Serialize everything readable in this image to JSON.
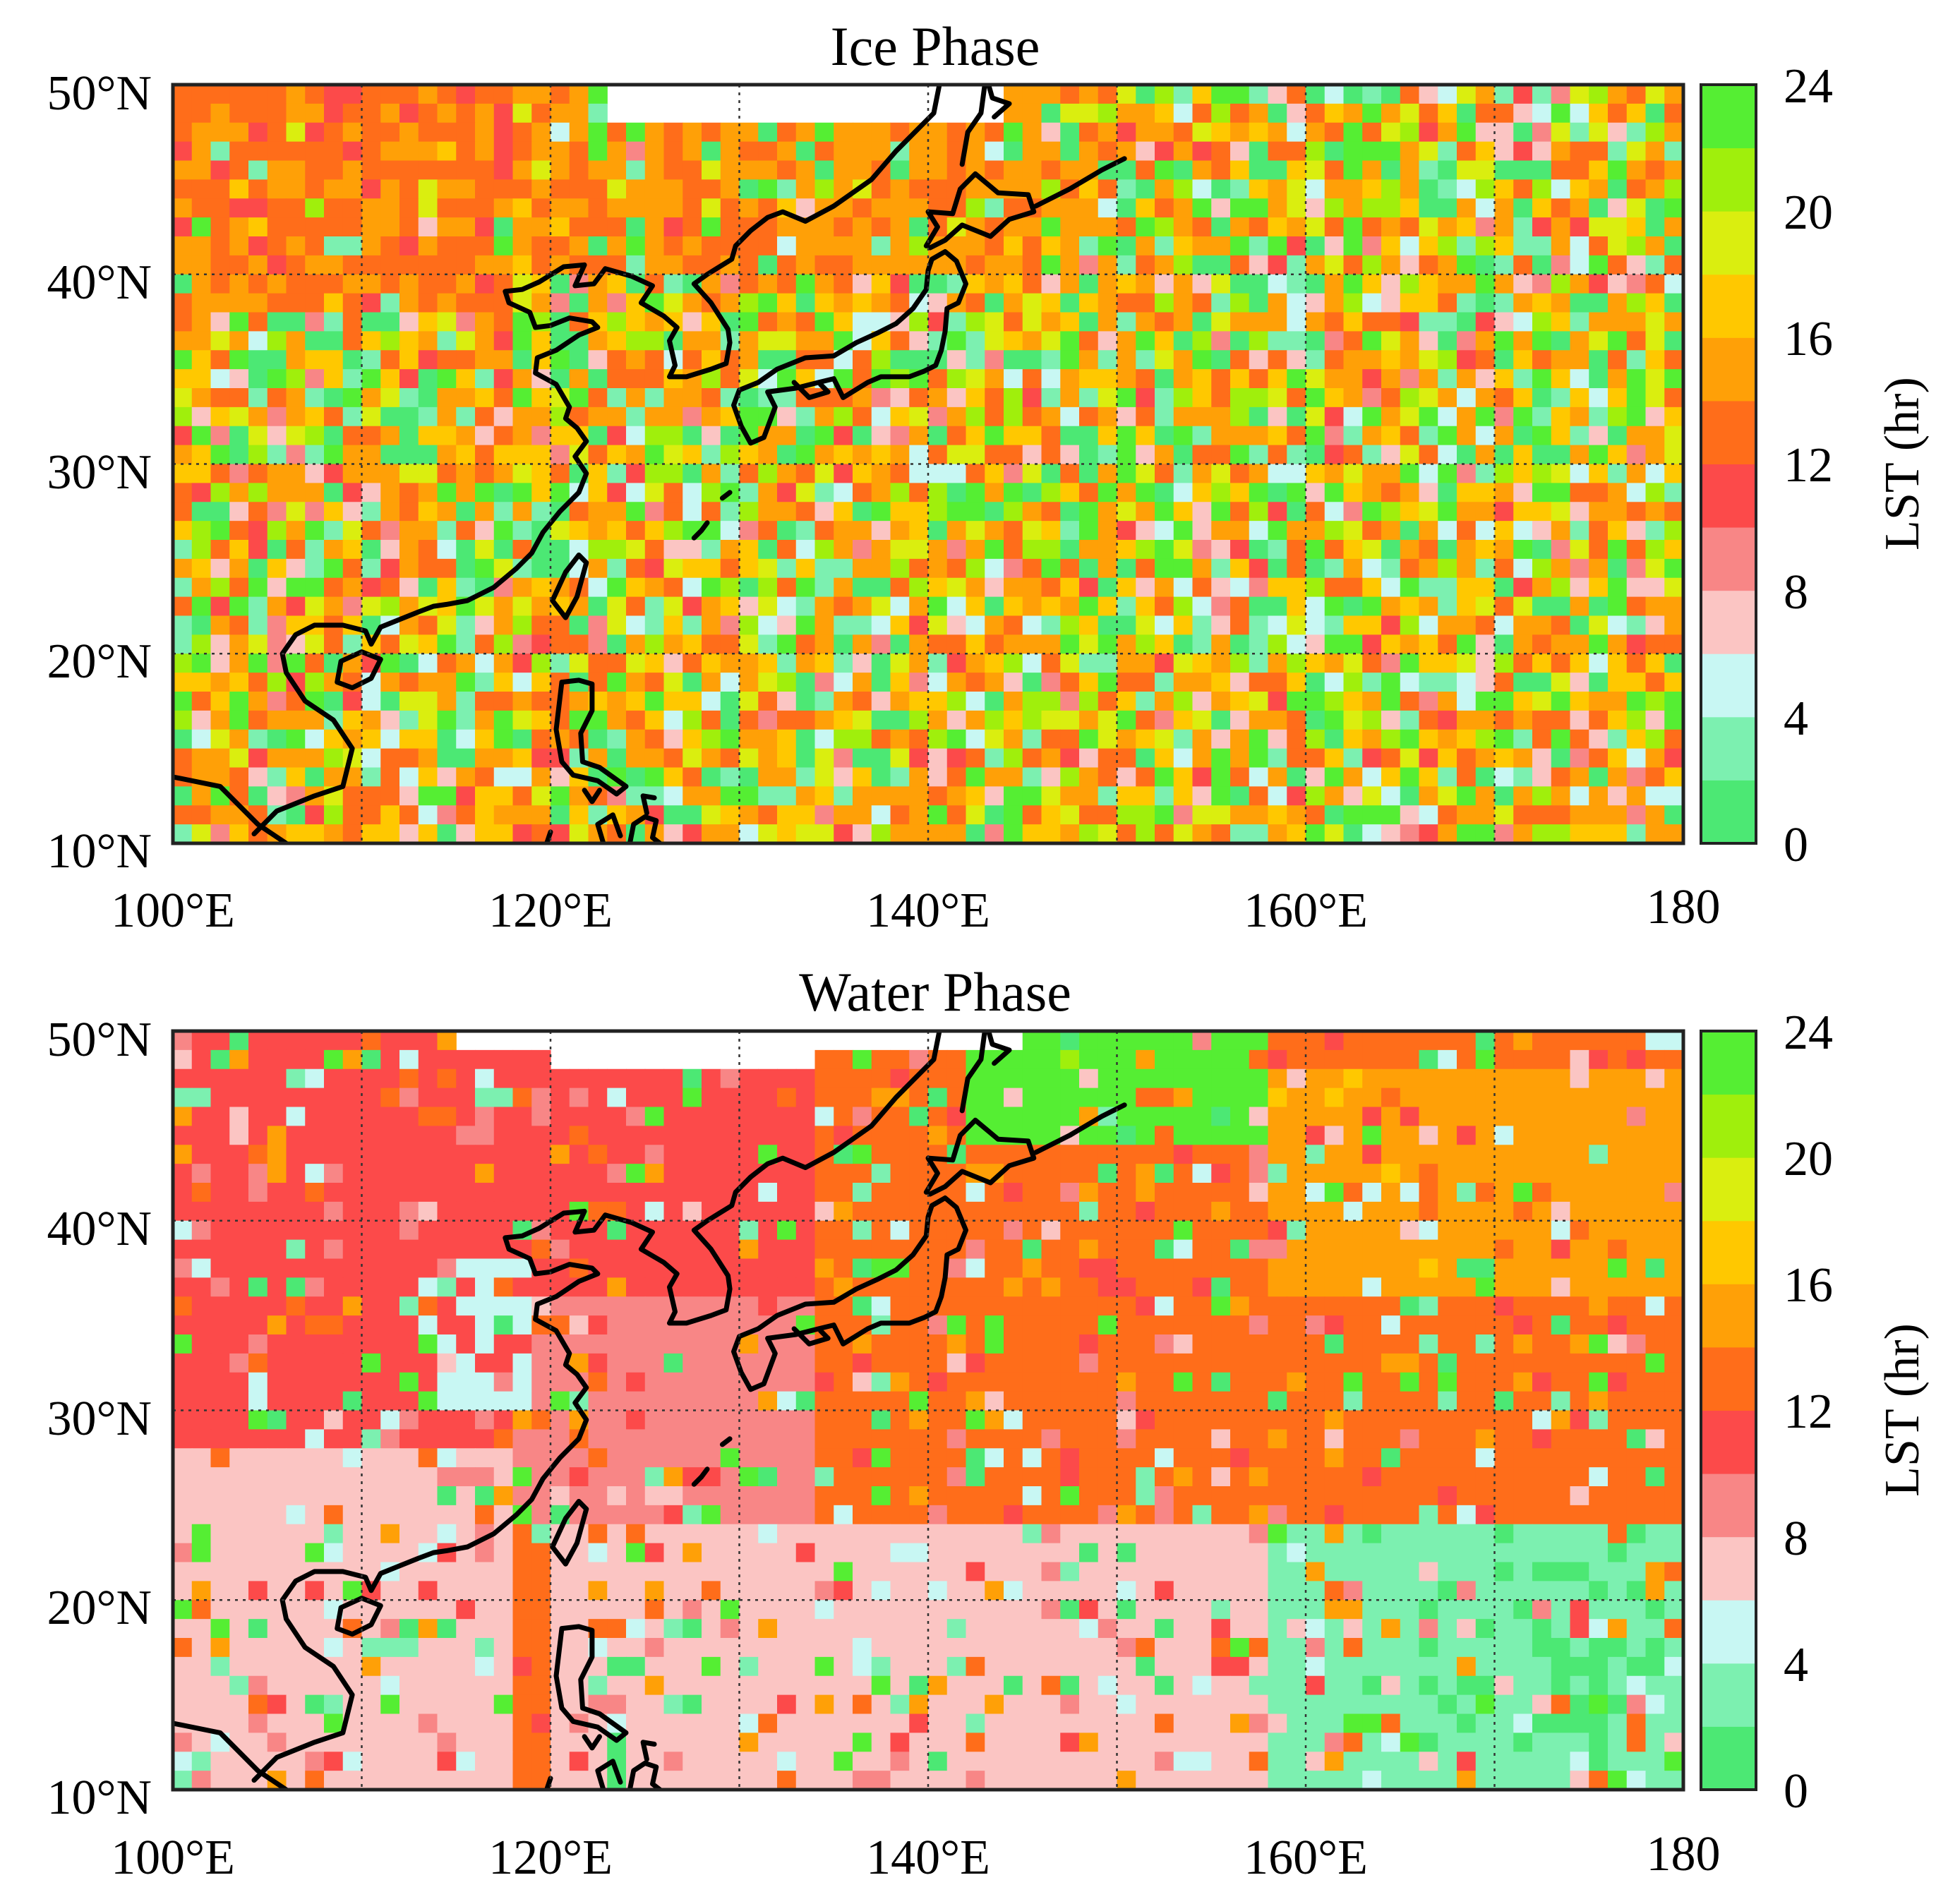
{
  "panels": [
    {
      "title": "Ice Phase",
      "lat_ticks": [
        "50°N",
        "40°N",
        "30°N",
        "20°N",
        "10°N"
      ],
      "lon_ticks": [
        "100°E",
        "120°E",
        "140°E",
        "160°E",
        "180"
      ],
      "colorbar": {
        "label": "LST (hr)",
        "ticks": [
          "24",
          "20",
          "16",
          "12",
          "8",
          "4",
          "0"
        ]
      }
    },
    {
      "title": "Water Phase",
      "lat_ticks": [
        "50°N",
        "40°N",
        "30°N",
        "20°N",
        "10°N"
      ],
      "lon_ticks": [
        "100°E",
        "120°E",
        "140°E",
        "160°E",
        "180"
      ],
      "colorbar": {
        "label": "LST (hr)",
        "ticks": [
          "24",
          "20",
          "16",
          "12",
          "8",
          "4",
          "0"
        ]
      }
    }
  ],
  "chart_data": [
    {
      "type": "heatmap",
      "title": "Ice Phase",
      "x_range_deg_east": [
        100,
        180
      ],
      "y_range_deg_north": [
        10,
        50
      ],
      "grid": true,
      "colorbar": {
        "label": "LST (hr)",
        "range": [
          0,
          24
        ],
        "step": 2,
        "colors": [
          "#4ce874",
          "#7cf0b0",
          "#c8f7f3",
          "#fbc5c3",
          "#f88686",
          "#fc4a4a",
          "#ff6d1a",
          "#ffa007",
          "#ffc800",
          "#daee0f",
          "#a0ef0c",
          "#55ee33"
        ]
      },
      "pattern": "mixed; orange (14-16 hr) over land and northwest; green/cyan (0-6 hr, 20-24 hr) over ocean; scattered pink",
      "weights": {
        "0": 10,
        "1": 8,
        "2": 5,
        "3": 5,
        "4": 3,
        "5": 3,
        "6": 14,
        "7": 20,
        "8": 11,
        "9": 7,
        "10": 6,
        "11": 8
      }
    },
    {
      "type": "heatmap",
      "title": "Water Phase",
      "x_range_deg_east": [
        100,
        180
      ],
      "y_range_deg_north": [
        10,
        50
      ],
      "grid": true,
      "colorbar": {
        "label": "LST (hr)",
        "range": [
          0,
          24
        ],
        "step": 2,
        "colors": [
          "#4ce874",
          "#7cf0b0",
          "#c8f7f3",
          "#fbc5c3",
          "#f88686",
          "#fc4a4a",
          "#ff6d1a",
          "#ffa007",
          "#ffc800",
          "#daee0f",
          "#a0ef0c",
          "#55ee33"
        ]
      },
      "pattern": "red (10-12 hr) dominant over western land; orange (12-16 hr) mid-latitude ocean; light pink (6-8 hr) over southern ocean; green/cyan patches in northeast and southeast",
      "regions": [
        {
          "lon": [
            100,
            134
          ],
          "lat": [
            36,
            50
          ],
          "dominant": 5
        },
        {
          "lon": [
            100,
            120
          ],
          "lat": [
            28,
            36
          ],
          "dominant": 5
        },
        {
          "lon": [
            100,
            118
          ],
          "lat": [
            10,
            28
          ],
          "dominant": 3
        },
        {
          "lon": [
            134,
            158
          ],
          "lat": [
            26,
            46
          ],
          "dominant": 6
        },
        {
          "lon": [
            158,
            180
          ],
          "lat": [
            36,
            48
          ],
          "dominant": 7
        },
        {
          "lon": [
            120,
            158
          ],
          "lat": [
            10,
            24
          ],
          "dominant": 3
        },
        {
          "lon": [
            158,
            180
          ],
          "lat": [
            10,
            24
          ],
          "dominant": 1
        },
        {
          "lon": [
            142,
            158
          ],
          "lat": [
            44,
            50
          ],
          "dominant": 11
        },
        {
          "lon": [
            118,
            134
          ],
          "lat": [
            24,
            36
          ],
          "dominant": 4
        }
      ]
    }
  ]
}
